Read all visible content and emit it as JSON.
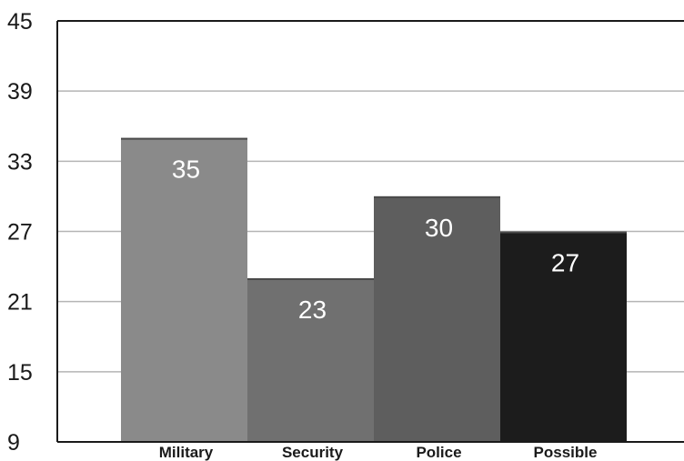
{
  "chart_data": {
    "type": "bar",
    "categories": [
      "Military",
      "Security",
      "Police",
      "Possible"
    ],
    "values": [
      35,
      23,
      30,
      27
    ],
    "data_labels": [
      "35",
      "23",
      "30",
      "27"
    ],
    "title": "",
    "xlabel": "",
    "ylabel": "",
    "ylim": [
      9,
      45
    ],
    "yticks": [
      9,
      15,
      21,
      27,
      33,
      39,
      45
    ],
    "ytick_labels": [
      "9",
      "15",
      "21",
      "27",
      "33",
      "39",
      "45"
    ],
    "grid": true,
    "legend": "none",
    "bar_colors": [
      "#8a8a8a",
      "#707070",
      "#5e5e5e",
      "#1c1c1c"
    ],
    "grid_color": "#b5b5b5",
    "axis_color": "#1a1a1a"
  }
}
